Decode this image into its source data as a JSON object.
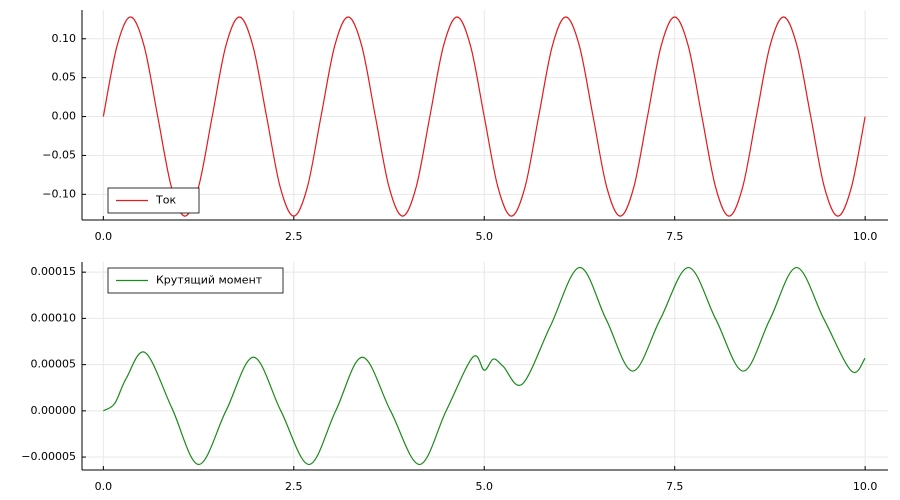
{
  "chart_data": [
    {
      "type": "line",
      "x": [
        0,
        0.179,
        0.357,
        0.536,
        0.714,
        0.893,
        1.071,
        1.25,
        1.429,
        1.607,
        1.786,
        1.964,
        2.143,
        2.321,
        2.5,
        2.679,
        2.857,
        3.036,
        3.214,
        3.393,
        3.571,
        3.75,
        3.929,
        4.107,
        4.286,
        4.464,
        4.643,
        4.821,
        5,
        5.179,
        5.357,
        5.536,
        5.714,
        5.893,
        6.071,
        6.25,
        6.429,
        6.607,
        6.786,
        6.964,
        7.143,
        7.321,
        7.5,
        7.679,
        7.857,
        8.036,
        8.214,
        8.393,
        8.571,
        8.75,
        8.929,
        9.107,
        9.286,
        9.464,
        9.643,
        9.821,
        10
      ],
      "series": [
        {
          "name": "Ток",
          "color": "#e41a1c",
          "values": [
            0,
            0.0905,
            0.128,
            0.0905,
            0,
            -0.0905,
            -0.128,
            -0.0905,
            0,
            0.0905,
            0.128,
            0.0905,
            0,
            -0.0905,
            -0.128,
            -0.0905,
            0,
            0.0905,
            0.128,
            0.0905,
            0,
            -0.0905,
            -0.128,
            -0.0905,
            0,
            0.0905,
            0.128,
            0.0905,
            0,
            -0.0905,
            -0.128,
            -0.0905,
            0,
            0.0905,
            0.128,
            0.0905,
            0,
            -0.0905,
            -0.128,
            -0.0905,
            0,
            0.0905,
            0.128,
            0.0905,
            0,
            -0.0905,
            -0.128,
            -0.0905,
            0,
            0.0905,
            0.128,
            0.0905,
            0,
            -0.0905,
            -0.128,
            -0.0905,
            0
          ]
        }
      ],
      "xlim": [
        -0.28,
        10.3
      ],
      "ylim": [
        -0.133,
        0.137
      ],
      "xticks": [
        {
          "value": 0,
          "label": "0.0"
        },
        2.5,
        {
          "value": 5,
          "label": "5.0"
        },
        7.5,
        {
          "value": 10,
          "label": "10.0"
        }
      ],
      "yticks": [
        {
          "value": -0.1,
          "label": "−0.10"
        },
        {
          "value": -0.05,
          "label": "−0.05"
        },
        {
          "value": 0,
          "label": "0.00"
        },
        0.05,
        {
          "value": 0.1,
          "label": "0.10"
        }
      ],
      "grid": true,
      "legend": "bottom left"
    },
    {
      "type": "line",
      "x": [
        0,
        0.15,
        0.3,
        0.55,
        0.9,
        1.25,
        1.61,
        1.97,
        2.33,
        2.7,
        3.05,
        3.4,
        3.77,
        4.15,
        4.5,
        4.85,
        5,
        5.12,
        5.25,
        5.5,
        5.87,
        6.25,
        6.6,
        6.95,
        7.31,
        7.68,
        8.04,
        8.4,
        8.75,
        9.1,
        9.46,
        9.82,
        10
      ],
      "series": [
        {
          "name": "Крутящий момент",
          "color": "#1a8a1a",
          "values": [
            0,
            8e-06,
            3.5e-05,
            6.3e-05,
            3e-06,
            -5.8e-05,
            0,
            5.8e-05,
            0,
            -5.8e-05,
            0,
            5.8e-05,
            0,
            -5.8e-05,
            0,
            5.8e-05,
            4.4e-05,
            5.6e-05,
            4.8e-05,
            2.9e-05,
            9.2e-05,
            0.000155,
            9.9e-05,
            4.3e-05,
            9.9e-05,
            0.000155,
            9.9e-05,
            4.3e-05,
            9.9e-05,
            0.000155,
            9.9e-05,
            4.3e-05,
            5.7e-05
          ]
        }
      ],
      "xlim": [
        -0.28,
        10.3
      ],
      "ylim": [
        -6.4e-05,
        0.000161
      ],
      "xticks": [
        {
          "value": 0,
          "label": "0.0"
        },
        2.5,
        {
          "value": 5,
          "label": "5.0"
        },
        7.5,
        {
          "value": 10,
          "label": "10.0"
        }
      ],
      "yticks": [
        {
          "value": -5e-05,
          "label": "−0.00005"
        },
        {
          "value": 0,
          "label": "0.00000"
        },
        {
          "value": 5e-05,
          "label": "0.00005"
        },
        {
          "value": 0.0001,
          "label": "0.00010"
        },
        {
          "value": 0.00015,
          "label": "0.00015"
        }
      ],
      "grid": true,
      "legend": "top left"
    }
  ]
}
